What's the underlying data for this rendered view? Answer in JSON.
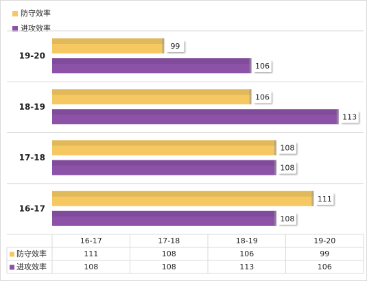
{
  "chart_data": {
    "type": "hbar",
    "categories": [
      "16-17",
      "17-18",
      "18-19",
      "19-20"
    ],
    "series": [
      {
        "name": "防守效率",
        "color": "#f5c862",
        "values": [
          111,
          108,
          106,
          99
        ]
      },
      {
        "name": "进攻效率",
        "color": "#8b52a8",
        "values": [
          108,
          108,
          113,
          106
        ]
      }
    ],
    "xlim": [
      90,
      115
    ],
    "grid": true,
    "legend": "top-left",
    "data_table": true
  }
}
